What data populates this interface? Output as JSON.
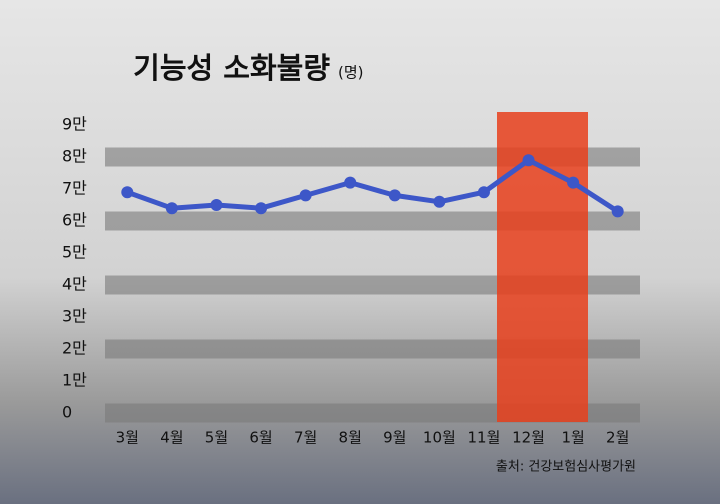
{
  "chart_data": {
    "type": "line",
    "title": "기능성 소화불량",
    "subtitle": "(명)",
    "source": "출처: 건강보험심사평가원",
    "categories": [
      "3월",
      "4월",
      "5월",
      "6월",
      "7월",
      "8월",
      "9월",
      "10월",
      "11월",
      "12월",
      "1월",
      "2월"
    ],
    "series": [
      {
        "color": "#3d57c8",
        "values": [
          69000,
          64000,
          65000,
          64000,
          68000,
          72000,
          68000,
          66000,
          69000,
          79000,
          72000,
          63000
        ]
      }
    ],
    "ylim": [
      0,
      90000
    ],
    "yticks": [
      {
        "value": 0,
        "label": "0"
      },
      {
        "value": 10000,
        "label": "1만"
      },
      {
        "value": 20000,
        "label": "2만"
      },
      {
        "value": 30000,
        "label": "3만"
      },
      {
        "value": 40000,
        "label": "4만"
      },
      {
        "value": 50000,
        "label": "5만"
      },
      {
        "value": 60000,
        "label": "6만"
      },
      {
        "value": 70000,
        "label": "7만"
      },
      {
        "value": 80000,
        "label": "8만"
      },
      {
        "value": 90000,
        "label": "9만"
      }
    ],
    "grid": true
  }
}
